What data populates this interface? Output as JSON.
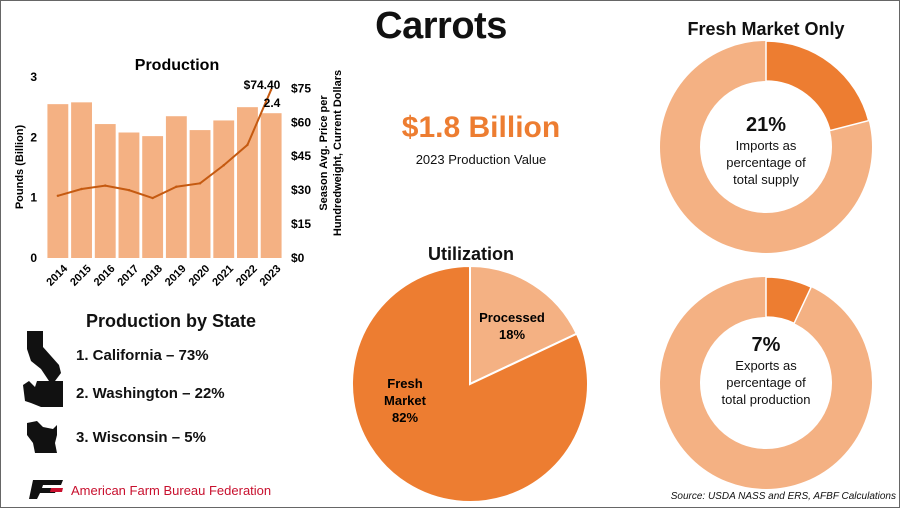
{
  "title": "Carrots",
  "headline": {
    "value": "$1.8 Billion",
    "caption": "2023 Production Value"
  },
  "fresh_market_title": "Fresh Market Only",
  "utilization_title": "Utilization",
  "production_by_state": {
    "title": "Production by State",
    "items": [
      {
        "text": "1.  California – 73%",
        "icon": "california-shape-icon"
      },
      {
        "text": "2.  Washington – 22%",
        "icon": "washington-shape-icon"
      },
      {
        "text": "3.  Wisconsin – 5%",
        "icon": "wisconsin-shape-icon"
      }
    ]
  },
  "footer": {
    "org": "American Farm Bureau Federation",
    "source": "Source: USDA NASS and ERS, AFBF Calculations"
  },
  "colors": {
    "dark_orange": "#ED7D31",
    "light_orange": "#F4B183",
    "org_red": "#C8102E"
  },
  "chart_data": [
    {
      "type": "bar",
      "title": "Production",
      "categories": [
        "2014",
        "2015",
        "2016",
        "2017",
        "2018",
        "2019",
        "2020",
        "2021",
        "2022",
        "2023"
      ],
      "series": [
        {
          "axis": "left",
          "type": "bar",
          "values": [
            2.55,
            2.58,
            2.22,
            2.08,
            2.02,
            2.35,
            2.12,
            2.28,
            2.5,
            2.4
          ]
        },
        {
          "axis": "right",
          "type": "line",
          "values": [
            27.5,
            30.5,
            32,
            30,
            26.5,
            31.5,
            33,
            41,
            50,
            74.4
          ]
        }
      ],
      "ylabel": "Pounds (Billion)",
      "ylabel_right": "Season Avg. Price per Hundredweight, Current Dollars",
      "ylim": [
        0,
        3
      ],
      "yticks": [
        "0",
        "1",
        "2",
        "3"
      ],
      "ylim_right": [
        0,
        80
      ],
      "yticks_right": [
        "$0",
        "$15",
        "$30",
        "$45",
        "$60",
        "$75"
      ],
      "data_labels": {
        "price_2023": "$74.40",
        "production_2023": "2.4"
      }
    },
    {
      "type": "pie",
      "title": "Utilization",
      "slices": [
        {
          "label_lines": [
            "Fresh",
            "Market"
          ],
          "pct_label": "82%",
          "value": 82,
          "color": "#ED7D31"
        },
        {
          "label_lines": [
            "Processed"
          ],
          "pct_label": "18%",
          "value": 18,
          "color": "#F4B183"
        }
      ]
    },
    {
      "type": "pie",
      "variant": "donut",
      "value": 21,
      "big_label": "21%",
      "lines": [
        "Imports as",
        "percentage of",
        "total supply"
      ],
      "colors": [
        "#ED7D31",
        "#F4B183"
      ]
    },
    {
      "type": "pie",
      "variant": "donut",
      "value": 7,
      "big_label": "7%",
      "lines": [
        "Exports as",
        "percentage of",
        "total production"
      ],
      "colors": [
        "#ED7D31",
        "#F4B183"
      ]
    }
  ]
}
